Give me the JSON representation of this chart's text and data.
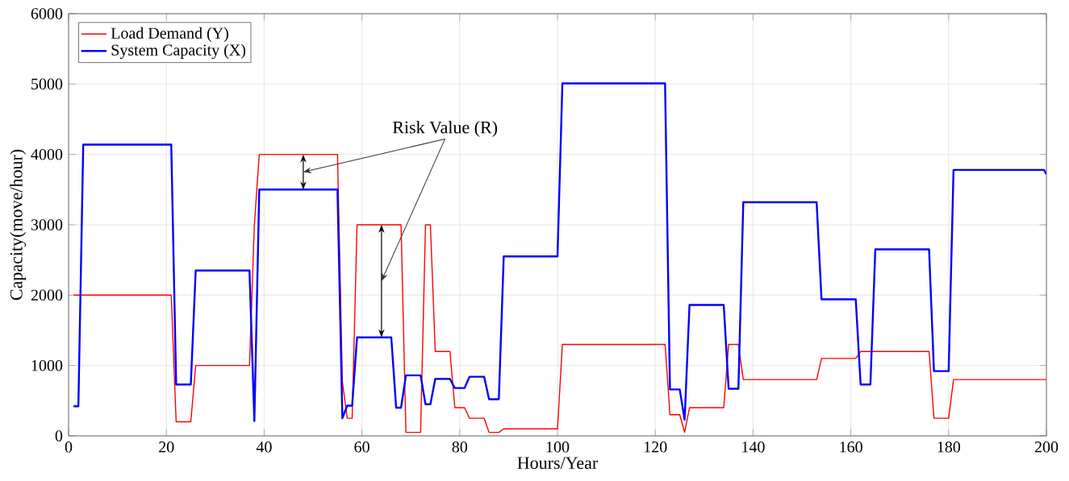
{
  "chart_data": {
    "type": "line",
    "xlabel": "Hours/Year",
    "ylabel": "Capacity(move/hour)",
    "xlim": [
      0,
      200
    ],
    "ylim": [
      0,
      6000
    ],
    "xticks": [
      0,
      20,
      40,
      60,
      80,
      100,
      120,
      140,
      160,
      180,
      200
    ],
    "yticks": [
      0,
      1000,
      2000,
      3000,
      4000,
      5000,
      6000
    ],
    "grid": true,
    "legend": "top left",
    "annotations": [
      "Risk Value (R)"
    ],
    "series": [
      {
        "name": "Load Demand (Y)",
        "color": "#ff0000",
        "x": [
          1,
          21,
          22,
          25,
          26,
          37,
          38,
          39,
          55,
          56,
          57,
          58,
          59,
          68,
          69,
          72,
          73,
          74,
          75,
          78,
          79,
          81,
          82,
          85,
          86,
          88,
          89,
          100,
          101,
          122,
          123,
          125,
          126,
          127,
          134,
          135,
          137,
          138,
          153,
          154,
          161,
          162,
          176,
          177,
          180,
          181,
          200
        ],
        "values": [
          2000,
          2000,
          200,
          200,
          1000,
          1000,
          3000,
          4000,
          4000,
          770,
          250,
          250,
          3000,
          3000,
          50,
          50,
          3000,
          3000,
          1200,
          1200,
          400,
          400,
          250,
          250,
          50,
          50,
          100,
          100,
          1300,
          1300,
          300,
          300,
          50,
          400,
          400,
          1300,
          1300,
          800,
          800,
          1100,
          1100,
          1200,
          1200,
          250,
          250,
          800,
          800
        ]
      },
      {
        "name": "System Capacity (X)",
        "color": "#0000ff",
        "x": [
          1,
          2,
          3,
          21,
          22,
          25,
          26,
          37,
          38,
          39,
          55,
          56,
          57,
          58,
          59,
          66,
          67,
          68,
          69,
          72,
          73,
          74,
          75,
          78,
          79,
          81,
          82,
          85,
          86,
          88,
          89,
          100,
          101,
          122,
          123,
          125,
          126,
          127,
          134,
          135,
          137,
          138,
          153,
          154,
          161,
          162,
          164,
          165,
          176,
          177,
          180,
          181,
          199.5,
          200
        ],
        "values": [
          420,
          420,
          4140,
          4140,
          730,
          730,
          2350,
          2350,
          210,
          3500,
          3500,
          250,
          430,
          430,
          1400,
          1400,
          400,
          400,
          860,
          860,
          450,
          450,
          810,
          810,
          680,
          680,
          840,
          840,
          520,
          520,
          2550,
          2550,
          5010,
          5010,
          660,
          660,
          230,
          1860,
          1860,
          670,
          670,
          3320,
          3320,
          1940,
          1940,
          730,
          730,
          2650,
          2650,
          920,
          920,
          3780,
          3780,
          3720
        ]
      }
    ]
  }
}
